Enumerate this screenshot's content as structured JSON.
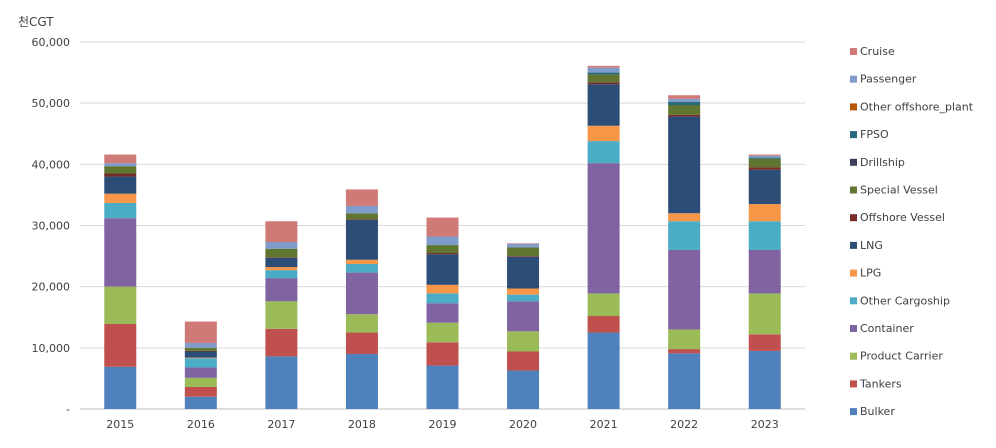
{
  "chart_data": {
    "type": "bar",
    "stacked": true,
    "ylabel": "천CGT",
    "ylim": [
      0,
      60000
    ],
    "yticks": [
      0,
      10000,
      20000,
      30000,
      40000,
      50000,
      60000
    ],
    "ytick_labels": [
      "-",
      "10,000",
      "20,000",
      "30,000",
      "40,000",
      "50,000",
      "60,000"
    ],
    "grid": true,
    "legend_placement": "right",
    "categories": [
      "2015",
      "2016",
      "2017",
      "2018",
      "2019",
      "2020",
      "2021",
      "2022",
      "2023"
    ],
    "series": [
      {
        "name": "Bulker",
        "color": "#4f81bd",
        "values": [
          6900,
          2000,
          8600,
          9000,
          7100,
          6300,
          12500,
          9100,
          9500
        ]
      },
      {
        "name": "Tankers",
        "color": "#c0504d",
        "values": [
          7000,
          1600,
          4500,
          3500,
          3800,
          3100,
          2700,
          700,
          2700
        ]
      },
      {
        "name": "Product Carrier",
        "color": "#9bbb59",
        "values": [
          6100,
          1500,
          4500,
          3000,
          3200,
          3300,
          3700,
          3200,
          6700
        ]
      },
      {
        "name": "Container",
        "color": "#8064a2",
        "values": [
          11200,
          1700,
          3800,
          6800,
          3200,
          4900,
          21300,
          13000,
          7100
        ]
      },
      {
        "name": "Other Cargoship",
        "color": "#4bacc6",
        "values": [
          2500,
          1500,
          1300,
          1400,
          1600,
          1100,
          3600,
          4700,
          4700
        ]
      },
      {
        "name": "LPG",
        "color": "#f79646",
        "values": [
          1500,
          100,
          500,
          700,
          1400,
          1000,
          2500,
          1300,
          2800
        ]
      },
      {
        "name": "LNG",
        "color": "#2c4d75",
        "values": [
          2800,
          1000,
          1500,
          6500,
          5000,
          5200,
          6800,
          15800,
          5600
        ]
      },
      {
        "name": "Offshore Vessel",
        "color": "#772c2a",
        "values": [
          500,
          100,
          100,
          100,
          200,
          100,
          300,
          300,
          400
        ]
      },
      {
        "name": "Special Vessel",
        "color": "#5f7530",
        "values": [
          1200,
          500,
          1400,
          1000,
          1300,
          1400,
          1300,
          1600,
          1400
        ]
      },
      {
        "name": "Drillship",
        "color": "#3b3f5c",
        "values": [
          0,
          0,
          0,
          0,
          0,
          0,
          0,
          0,
          0
        ]
      },
      {
        "name": "FPSO",
        "color": "#276a7c",
        "values": [
          0,
          0,
          0,
          0,
          0,
          0,
          300,
          500,
          200
        ]
      },
      {
        "name": "Other offshore_plant",
        "color": "#b65708",
        "values": [
          0,
          0,
          0,
          0,
          0,
          0,
          0,
          0,
          0
        ]
      },
      {
        "name": "Passenger",
        "color": "#7f9ccb",
        "values": [
          500,
          800,
          1100,
          1200,
          1400,
          600,
          800,
          500,
          300
        ]
      },
      {
        "name": "Cruise",
        "color": "#d07a78",
        "values": [
          1400,
          3500,
          3400,
          2700,
          3100,
          100,
          300,
          600,
          200
        ]
      }
    ]
  }
}
